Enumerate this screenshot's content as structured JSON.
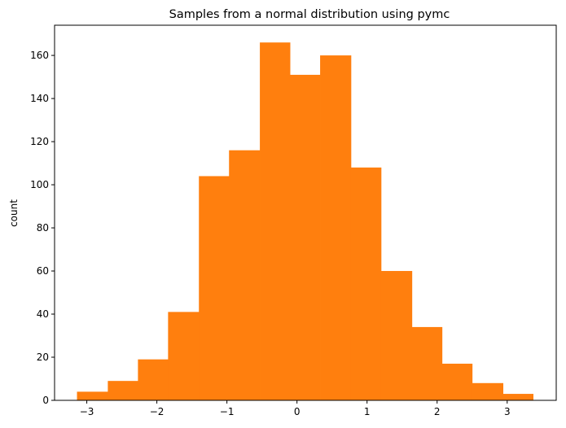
{
  "chart_data": {
    "type": "bar",
    "title": "Samples from a normal distribution using pymc",
    "xlabel": "",
    "ylabel": "count",
    "bin_edges": [
      -3.14,
      -2.7,
      -2.27,
      -1.84,
      -1.4,
      -0.97,
      -0.53,
      -0.1,
      0.33,
      0.77,
      1.2,
      1.64,
      2.07,
      2.5,
      2.94,
      3.37
    ],
    "values": [
      4,
      9,
      19,
      41,
      104,
      116,
      166,
      151,
      160,
      108,
      60,
      34,
      17,
      8,
      3
    ],
    "xlim": [
      -3.46,
      3.7
    ],
    "ylim": [
      0,
      174
    ],
    "xticks": [
      -3,
      -2,
      -1,
      0,
      1,
      2,
      3
    ],
    "xtick_labels": [
      "−3",
      "−2",
      "−1",
      "0",
      "1",
      "2",
      "3"
    ],
    "yticks": [
      0,
      20,
      40,
      60,
      80,
      100,
      120,
      140,
      160
    ],
    "ytick_labels": [
      "0",
      "20",
      "40",
      "60",
      "80",
      "100",
      "120",
      "140",
      "160"
    ],
    "bar_color": "#ff7f0e",
    "grid": false,
    "legend": "none"
  }
}
